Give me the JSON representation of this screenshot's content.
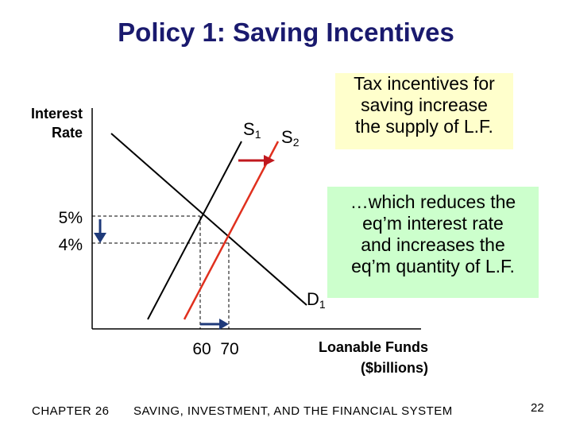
{
  "slide": {
    "title": "Policy 1:  Saving Incentives",
    "footer_chapter": "CHAPTER 26",
    "footer_title": "SAVING, INVESTMENT, AND THE FINANCIAL SYSTEM",
    "page_number": "22"
  },
  "diagram": {
    "y_axis_label_line1": "Interest",
    "y_axis_label_line2": "Rate",
    "x_axis_label_line1": "Loanable Funds",
    "x_axis_label_line2": "($billions)",
    "supply1_label": "S",
    "supply1_sub": "1",
    "supply2_label": "S",
    "supply2_sub": "2",
    "demand_label": "D",
    "demand_sub": "1",
    "rate_high": "5%",
    "rate_low": "4%",
    "quantity_low": "60",
    "quantity_high": "70",
    "colors": {
      "supply1": "#000000",
      "supply2": "#e0301e",
      "demand": "#000000",
      "arrow_shift": "#c0181e",
      "arrow_axis": "#1f3a7a",
      "guide": "#000000"
    }
  },
  "callouts": {
    "yellow": [
      "Tax incentives for",
      "saving increase",
      "the supply of L.F."
    ],
    "green": [
      "…which reduces the",
      "eq’m interest rate",
      "and increases the",
      "eq’m quantity of L.F."
    ]
  }
}
